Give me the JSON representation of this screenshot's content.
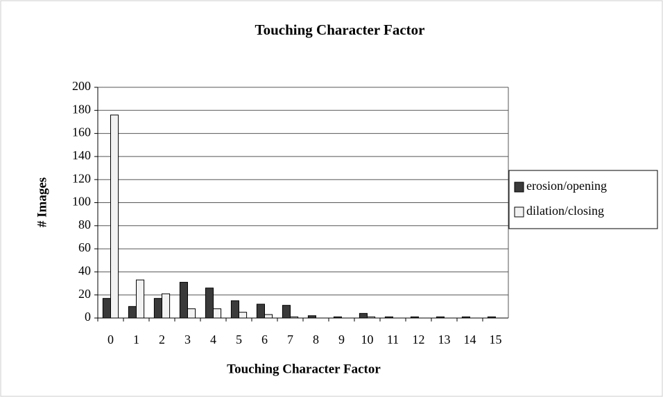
{
  "chart_data": {
    "type": "bar",
    "title": "Touching Character Factor",
    "x_label": "Touching Character Factor",
    "y_label": "# Images",
    "categories": [
      "0",
      "1",
      "2",
      "3",
      "4",
      "5",
      "6",
      "7",
      "8",
      "9",
      "10",
      "11",
      "12",
      "13",
      "14",
      "15"
    ],
    "series": [
      {
        "name": "erosion/opening",
        "color": "#3a3a3a",
        "values": [
          17,
          10,
          17,
          31,
          26,
          15,
          12,
          11,
          2,
          1,
          4,
          1,
          1,
          1,
          1,
          1
        ]
      },
      {
        "name": "dilation/closing",
        "color": "#f2f2f2",
        "values": [
          176,
          33,
          21,
          8,
          8,
          5,
          3,
          1,
          0,
          0,
          1,
          0,
          0,
          0,
          0,
          0
        ]
      }
    ],
    "ylim": [
      0,
      200
    ],
    "yticks": [
      0,
      20,
      40,
      60,
      80,
      100,
      120,
      140,
      160,
      180,
      200
    ],
    "grid": true,
    "legend": "right"
  }
}
